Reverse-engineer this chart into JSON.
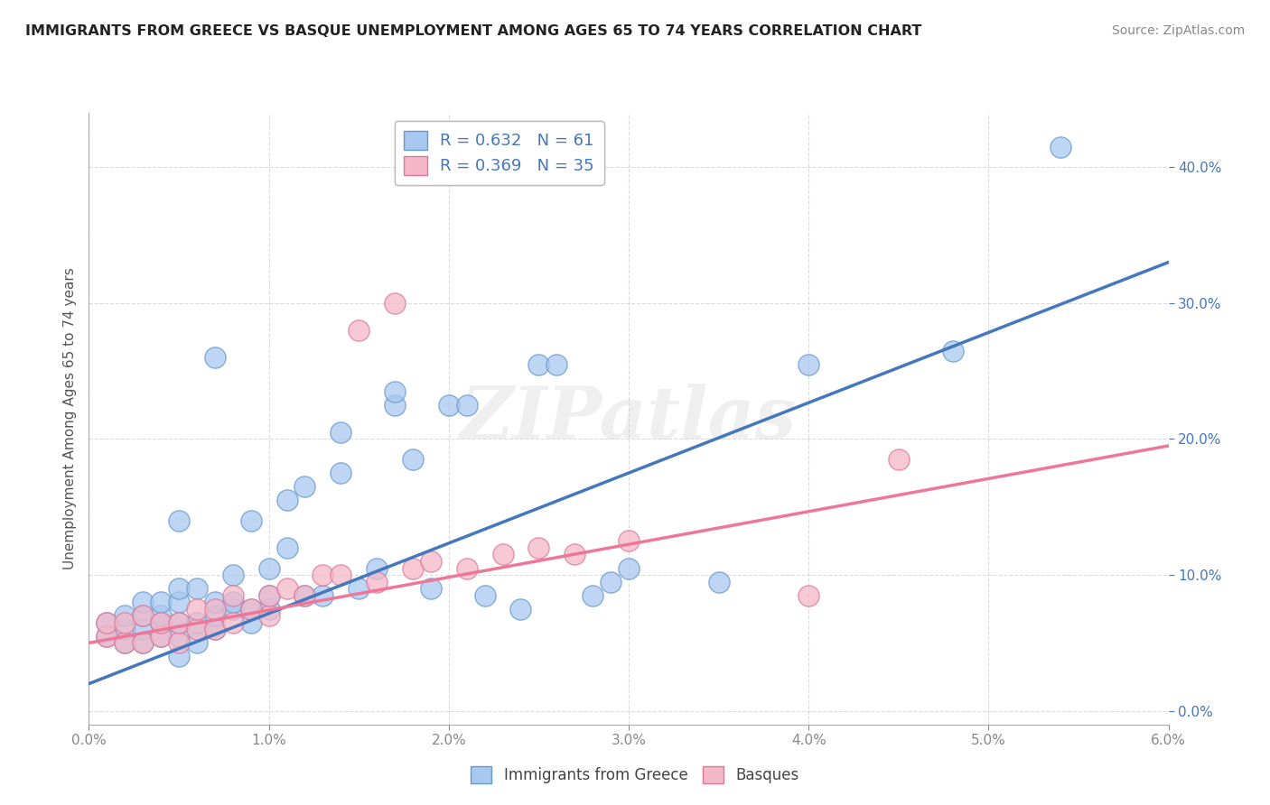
{
  "title": "IMMIGRANTS FROM GREECE VS BASQUE UNEMPLOYMENT AMONG AGES 65 TO 74 YEARS CORRELATION CHART",
  "source": "Source: ZipAtlas.com",
  "ylabel": "Unemployment Among Ages 65 to 74 years",
  "legend_label1": "Immigrants from Greece",
  "legend_label2": "Basques",
  "r1": 0.632,
  "n1": 61,
  "r2": 0.369,
  "n2": 35,
  "xlim": [
    0.0,
    0.06
  ],
  "ylim": [
    -0.01,
    0.44
  ],
  "xticks": [
    0.0,
    0.01,
    0.02,
    0.03,
    0.04,
    0.05,
    0.06
  ],
  "yticks": [
    0.0,
    0.1,
    0.2,
    0.3,
    0.4
  ],
  "color_blue_fill": "#A8C8F0",
  "color_blue_edge": "#6699CC",
  "color_pink_fill": "#F4B8C8",
  "color_pink_edge": "#DD7799",
  "color_line_blue": "#4477BB",
  "color_line_pink": "#EE7799",
  "bg_color": "#FFFFFF",
  "grid_color": "#CCCCCC",
  "watermark": "ZIPatlas",
  "blue_scatter_x": [
    0.001,
    0.001,
    0.002,
    0.002,
    0.002,
    0.003,
    0.003,
    0.003,
    0.003,
    0.004,
    0.004,
    0.004,
    0.004,
    0.005,
    0.005,
    0.005,
    0.005,
    0.005,
    0.005,
    0.006,
    0.006,
    0.006,
    0.007,
    0.007,
    0.007,
    0.007,
    0.008,
    0.008,
    0.008,
    0.009,
    0.009,
    0.009,
    0.01,
    0.01,
    0.01,
    0.011,
    0.011,
    0.012,
    0.012,
    0.013,
    0.014,
    0.014,
    0.015,
    0.016,
    0.017,
    0.017,
    0.018,
    0.019,
    0.02,
    0.021,
    0.022,
    0.024,
    0.025,
    0.026,
    0.028,
    0.029,
    0.03,
    0.035,
    0.04,
    0.048,
    0.054
  ],
  "blue_scatter_y": [
    0.055,
    0.065,
    0.05,
    0.06,
    0.07,
    0.05,
    0.06,
    0.07,
    0.08,
    0.055,
    0.065,
    0.07,
    0.08,
    0.04,
    0.055,
    0.065,
    0.08,
    0.09,
    0.14,
    0.05,
    0.065,
    0.09,
    0.06,
    0.07,
    0.08,
    0.26,
    0.075,
    0.08,
    0.1,
    0.065,
    0.075,
    0.14,
    0.075,
    0.085,
    0.105,
    0.12,
    0.155,
    0.085,
    0.165,
    0.085,
    0.175,
    0.205,
    0.09,
    0.105,
    0.225,
    0.235,
    0.185,
    0.09,
    0.225,
    0.225,
    0.085,
    0.075,
    0.255,
    0.255,
    0.085,
    0.095,
    0.105,
    0.095,
    0.255,
    0.265,
    0.415
  ],
  "pink_scatter_x": [
    0.001,
    0.001,
    0.002,
    0.002,
    0.003,
    0.003,
    0.004,
    0.004,
    0.005,
    0.005,
    0.006,
    0.006,
    0.007,
    0.007,
    0.008,
    0.008,
    0.009,
    0.01,
    0.01,
    0.011,
    0.012,
    0.013,
    0.014,
    0.015,
    0.016,
    0.017,
    0.018,
    0.019,
    0.021,
    0.023,
    0.025,
    0.027,
    0.03,
    0.04,
    0.045
  ],
  "pink_scatter_y": [
    0.055,
    0.065,
    0.05,
    0.065,
    0.05,
    0.07,
    0.055,
    0.065,
    0.05,
    0.065,
    0.06,
    0.075,
    0.06,
    0.075,
    0.065,
    0.085,
    0.075,
    0.07,
    0.085,
    0.09,
    0.085,
    0.1,
    0.1,
    0.28,
    0.095,
    0.3,
    0.105,
    0.11,
    0.105,
    0.115,
    0.12,
    0.115,
    0.125,
    0.085,
    0.185
  ],
  "blue_line_x": [
    0.0,
    0.06
  ],
  "blue_line_y": [
    0.02,
    0.33
  ],
  "pink_line_x": [
    0.0,
    0.06
  ],
  "pink_line_y": [
    0.05,
    0.195
  ]
}
